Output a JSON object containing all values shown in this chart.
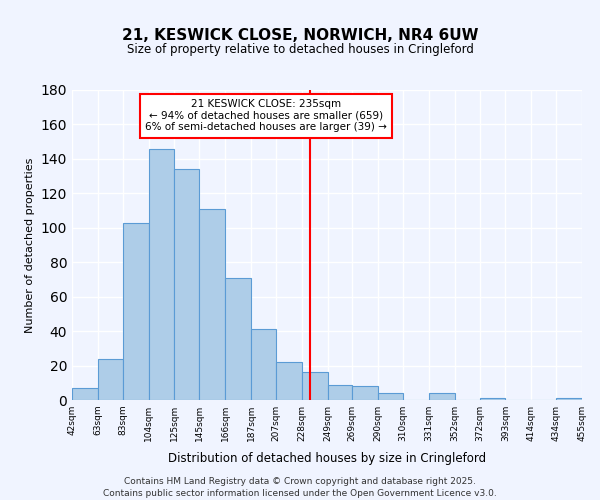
{
  "title": "21, KESWICK CLOSE, NORWICH, NR4 6UW",
  "subtitle": "Size of property relative to detached houses in Cringleford",
  "xlabel": "Distribution of detached houses by size in Cringleford",
  "ylabel": "Number of detached properties",
  "bin_labels": [
    "42sqm",
    "63sqm",
    "83sqm",
    "104sqm",
    "125sqm",
    "145sqm",
    "166sqm",
    "187sqm",
    "207sqm",
    "228sqm",
    "249sqm",
    "269sqm",
    "290sqm",
    "310sqm",
    "331sqm",
    "352sqm",
    "372sqm",
    "393sqm",
    "414sqm",
    "434sqm",
    "455sqm"
  ],
  "bin_edges": [
    42,
    63,
    83,
    104,
    125,
    145,
    166,
    187,
    207,
    228,
    249,
    269,
    290,
    310,
    331,
    352,
    372,
    393,
    414,
    434,
    455
  ],
  "bar_heights": [
    7,
    24,
    103,
    146,
    134,
    111,
    71,
    41,
    22,
    16,
    9,
    8,
    4,
    0,
    4,
    0,
    1,
    0,
    0,
    1
  ],
  "bar_color": "#aecde8",
  "bar_edge_color": "#5b9bd5",
  "vline_x": 235,
  "vline_color": "red",
  "annotation_title": "21 KESWICK CLOSE: 235sqm",
  "annotation_line1": "← 94% of detached houses are smaller (659)",
  "annotation_line2": "6% of semi-detached houses are larger (39) →",
  "ylim": [
    0,
    180
  ],
  "yticks": [
    0,
    20,
    40,
    60,
    80,
    100,
    120,
    140,
    160,
    180
  ],
  "footer1": "Contains HM Land Registry data © Crown copyright and database right 2025.",
  "footer2": "Contains public sector information licensed under the Open Government Licence v3.0.",
  "background_color": "#f0f4ff",
  "plot_bg_color": "#f0f4ff"
}
